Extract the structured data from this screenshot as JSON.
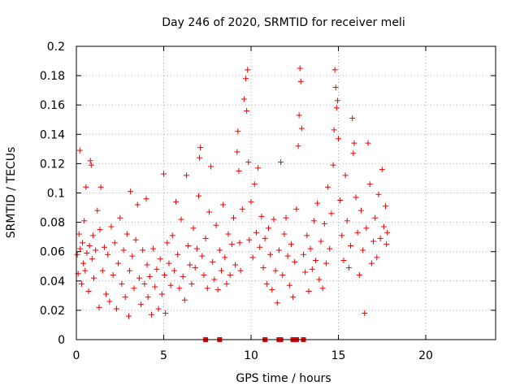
{
  "chart_data": {
    "type": "scatter",
    "title": "Day 246 of 2020, SRMTID for receiver meli",
    "xlabel": "GPS time / hours",
    "ylabel": "SRMTID / TECUs",
    "xlim": [
      0,
      24
    ],
    "ylim": [
      0,
      0.2
    ],
    "x_ticks": [
      0,
      5,
      10,
      15,
      20
    ],
    "x_tick_labels": [
      "0",
      "5",
      "10",
      "15",
      "20"
    ],
    "y_ticks": [
      0,
      0.02,
      0.04,
      0.06,
      0.08,
      0.1,
      0.12,
      0.14,
      0.16,
      0.18,
      0.2
    ],
    "y_tick_labels": [
      "0",
      "0.02",
      "0.04",
      "0.06",
      "0.08",
      "0.1",
      "0.12",
      "0.14",
      "0.16",
      "0.18",
      "0.2"
    ],
    "grid": true,
    "marker": "plus",
    "color": "#ee0000",
    "series": [
      {
        "name": "SRMTID",
        "points": [
          [
            0.05,
            0.058
          ],
          [
            0.1,
            0.045
          ],
          [
            0.15,
            0.072
          ],
          [
            0.2,
            0.129
          ],
          [
            0.22,
            0.062
          ],
          [
            0.3,
            0.038
          ],
          [
            0.35,
            0.066
          ],
          [
            0.4,
            0.052
          ],
          [
            0.45,
            0.081
          ],
          [
            0.5,
            0.047
          ],
          [
            0.55,
            0.104
          ],
          [
            0.6,
            0.059
          ],
          [
            0.7,
            0.033
          ],
          [
            0.75,
            0.064
          ],
          [
            0.8,
            0.122
          ],
          [
            0.85,
            0.119
          ],
          [
            0.9,
            0.055
          ],
          [
            0.95,
            0.071
          ],
          [
            1.0,
            0.042
          ],
          [
            1.1,
            0.061
          ],
          [
            1.2,
            0.088
          ],
          [
            1.3,
            0.022
          ],
          [
            1.35,
            0.075
          ],
          [
            1.4,
            0.104
          ],
          [
            1.5,
            0.047
          ],
          [
            1.6,
            0.063
          ],
          [
            1.7,
            0.031
          ],
          [
            1.8,
            0.058
          ],
          [
            1.9,
            0.026
          ],
          [
            2.0,
            0.077
          ],
          [
            2.1,
            0.044
          ],
          [
            2.2,
            0.066
          ],
          [
            2.3,
            0.021
          ],
          [
            2.4,
            0.052
          ],
          [
            2.5,
            0.083
          ],
          [
            2.6,
            0.038
          ],
          [
            2.7,
            0.061
          ],
          [
            2.8,
            0.029
          ],
          [
            2.9,
            0.072
          ],
          [
            3.0,
            0.016
          ],
          [
            3.05,
            0.047
          ],
          [
            3.1,
            0.101
          ],
          [
            3.2,
            0.057
          ],
          [
            3.3,
            0.035
          ],
          [
            3.4,
            0.068
          ],
          [
            3.5,
            0.092
          ],
          [
            3.6,
            0.042
          ],
          [
            3.7,
            0.024
          ],
          [
            3.8,
            0.061
          ],
          [
            3.9,
            0.038
          ],
          [
            4.0,
            0.096
          ],
          [
            4.05,
            0.051
          ],
          [
            4.1,
            0.029
          ],
          [
            4.2,
            0.043
          ],
          [
            4.3,
            0.017
          ],
          [
            4.4,
            0.062
          ],
          [
            4.5,
            0.036
          ],
          [
            4.6,
            0.048
          ],
          [
            4.7,
            0.021
          ],
          [
            4.8,
            0.055
          ],
          [
            4.9,
            0.031
          ],
          [
            5.0,
            0.113
          ],
          [
            5.05,
            0.044
          ],
          [
            5.1,
            0.018
          ],
          [
            5.2,
            0.066
          ],
          [
            5.3,
            0.052
          ],
          [
            5.4,
            0.037
          ],
          [
            5.5,
            0.071
          ],
          [
            5.6,
            0.047
          ],
          [
            5.7,
            0.094
          ],
          [
            5.8,
            0.058
          ],
          [
            5.9,
            0.035
          ],
          [
            6.0,
            0.082
          ],
          [
            6.1,
            0.043
          ],
          [
            6.2,
            0.027
          ],
          [
            6.3,
            0.112
          ],
          [
            6.4,
            0.064
          ],
          [
            6.5,
            0.051
          ],
          [
            6.6,
            0.038
          ],
          [
            6.7,
            0.076
          ],
          [
            6.8,
            0.049
          ],
          [
            6.9,
            0.062
          ],
          [
            7.0,
            0.098
          ],
          [
            7.05,
            0.124
          ],
          [
            7.1,
            0.131
          ],
          [
            7.2,
            0.057
          ],
          [
            7.3,
            0.044
          ],
          [
            7.4,
            0.069
          ],
          [
            7.5,
            0.035
          ],
          [
            7.6,
            0.087
          ],
          [
            7.7,
            0.118
          ],
          [
            7.8,
            0.053
          ],
          [
            7.9,
            0.041
          ],
          [
            8.0,
            0.078
          ],
          [
            8.1,
            0.034
          ],
          [
            8.2,
            0.061
          ],
          [
            8.3,
            0.047
          ],
          [
            8.4,
            0.092
          ],
          [
            8.5,
            0.056
          ],
          [
            8.6,
            0.038
          ],
          [
            8.7,
            0.072
          ],
          [
            8.8,
            0.044
          ],
          [
            8.9,
            0.065
          ],
          [
            9.0,
            0.083
          ],
          [
            9.1,
            0.051
          ],
          [
            9.2,
            0.128
          ],
          [
            9.25,
            0.142
          ],
          [
            9.3,
            0.115
          ],
          [
            9.35,
            0.066
          ],
          [
            9.4,
            0.047
          ],
          [
            9.5,
            0.089
          ],
          [
            9.6,
            0.164
          ],
          [
            9.7,
            0.178
          ],
          [
            9.75,
            0.156
          ],
          [
            9.8,
            0.184
          ],
          [
            9.85,
            0.121
          ],
          [
            9.9,
            0.068
          ],
          [
            10.0,
            0.094
          ],
          [
            10.1,
            0.056
          ],
          [
            10.2,
            0.106
          ],
          [
            10.3,
            0.073
          ],
          [
            10.4,
            0.117
          ],
          [
            10.5,
            0.063
          ],
          [
            10.6,
            0.084
          ],
          [
            10.7,
            0.049
          ],
          [
            10.8,
            0.069
          ],
          [
            10.9,
            0.038
          ],
          [
            11.0,
            0.076
          ],
          [
            11.1,
            0.058
          ],
          [
            11.2,
            0.034
          ],
          [
            11.3,
            0.082
          ],
          [
            11.4,
            0.047
          ],
          [
            11.5,
            0.025
          ],
          [
            11.6,
            0.061
          ],
          [
            11.7,
            0.121
          ],
          [
            11.8,
            0.044
          ],
          [
            11.9,
            0.072
          ],
          [
            12.0,
            0.083
          ],
          [
            12.1,
            0.057
          ],
          [
            12.2,
            0.037
          ],
          [
            12.3,
            0.065
          ],
          [
            12.4,
            0.029
          ],
          [
            12.5,
            0.053
          ],
          [
            12.6,
            0.089
          ],
          [
            12.7,
            0.132
          ],
          [
            12.75,
            0.153
          ],
          [
            12.8,
            0.185
          ],
          [
            12.85,
            0.176
          ],
          [
            12.9,
            0.144
          ],
          [
            13.0,
            0.058
          ],
          [
            13.1,
            0.046
          ],
          [
            13.2,
            0.071
          ],
          [
            13.3,
            0.033
          ],
          [
            13.4,
            0.062
          ],
          [
            13.5,
            0.048
          ],
          [
            13.6,
            0.081
          ],
          [
            13.7,
            0.054
          ],
          [
            13.8,
            0.093
          ],
          [
            13.9,
            0.041
          ],
          [
            14.0,
            0.067
          ],
          [
            14.1,
            0.035
          ],
          [
            14.2,
            0.079
          ],
          [
            14.3,
            0.052
          ],
          [
            14.4,
            0.104
          ],
          [
            14.5,
            0.062
          ],
          [
            14.6,
            0.086
          ],
          [
            14.7,
            0.119
          ],
          [
            14.75,
            0.143
          ],
          [
            14.8,
            0.184
          ],
          [
            14.85,
            0.172
          ],
          [
            14.9,
            0.158
          ],
          [
            14.95,
            0.163
          ],
          [
            15.0,
            0.137
          ],
          [
            15.1,
            0.095
          ],
          [
            15.2,
            0.071
          ],
          [
            15.3,
            0.054
          ],
          [
            15.4,
            0.112
          ],
          [
            15.5,
            0.081
          ],
          [
            15.6,
            0.049
          ],
          [
            15.7,
            0.064
          ],
          [
            15.8,
            0.151
          ],
          [
            15.85,
            0.127
          ],
          [
            15.9,
            0.134
          ],
          [
            16.0,
            0.097
          ],
          [
            16.1,
            0.073
          ],
          [
            16.2,
            0.044
          ],
          [
            16.3,
            0.088
          ],
          [
            16.4,
            0.061
          ],
          [
            16.5,
            0.018
          ],
          [
            16.6,
            0.076
          ],
          [
            16.7,
            0.134
          ],
          [
            16.8,
            0.106
          ],
          [
            16.9,
            0.052
          ],
          [
            17.0,
            0.067
          ],
          [
            17.1,
            0.083
          ],
          [
            17.2,
            0.056
          ],
          [
            17.3,
            0.099
          ],
          [
            17.4,
            0.069
          ],
          [
            17.5,
            0.116
          ],
          [
            17.6,
            0.077
          ],
          [
            17.7,
            0.091
          ],
          [
            17.75,
            0.065
          ],
          [
            17.8,
            0.073
          ]
        ]
      }
    ],
    "zero_markers_x": [
      7.4,
      8.2,
      10.8,
      11.6,
      11.7,
      12.4,
      12.6,
      13.0
    ]
  }
}
